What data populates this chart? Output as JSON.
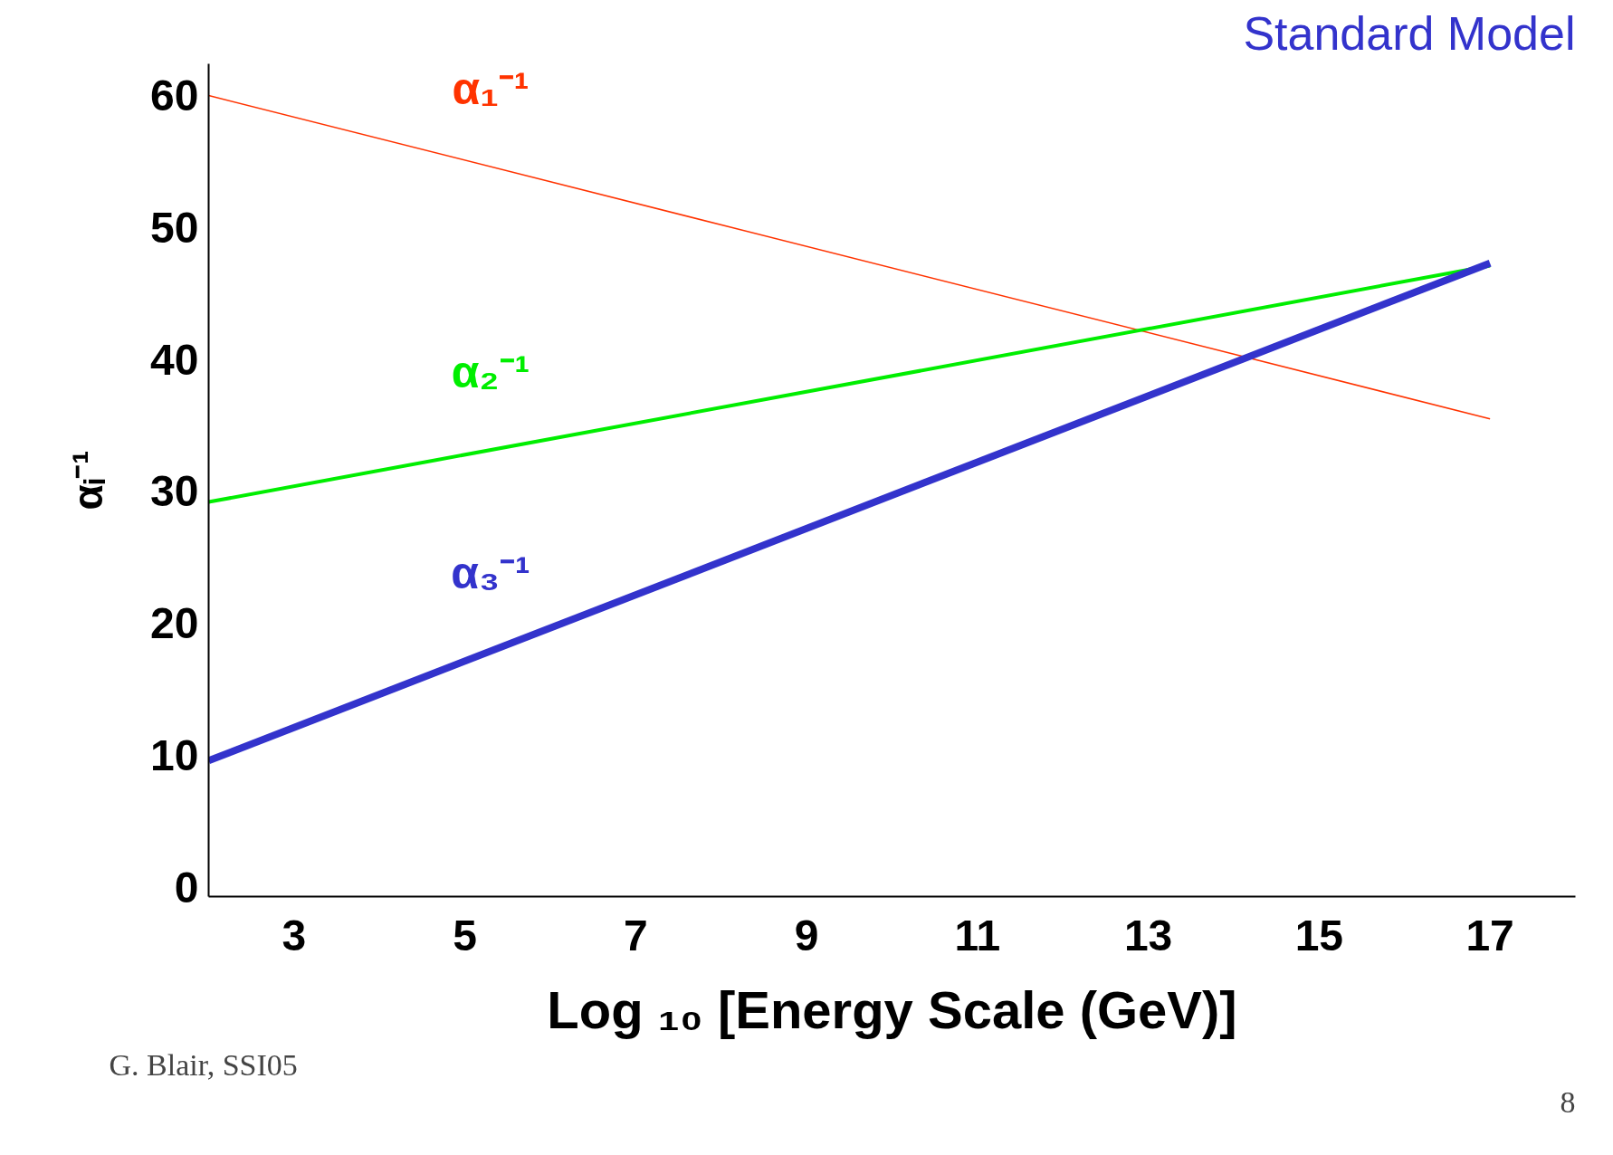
{
  "chart_data": {
    "type": "line",
    "title": "Standard Model",
    "xlabel": "Log ₁₀ [Energy Scale (GeV)]",
    "ylabel": "αᵢ⁻¹",
    "x": [
      2,
      17
    ],
    "xlim": [
      2,
      18
    ],
    "ylim": [
      -0.7,
      62.4
    ],
    "xticks": [
      3,
      5,
      7,
      9,
      11,
      13,
      15,
      17
    ],
    "yticks": [
      0,
      10,
      20,
      30,
      40,
      50,
      60
    ],
    "grid": false,
    "series": [
      {
        "name": "α₁⁻¹",
        "color": "#ff3300",
        "values": [
          60,
          35.5
        ]
      },
      {
        "name": "α₂⁻¹",
        "color": "#00ee00",
        "values": [
          29.2,
          47.1
        ]
      },
      {
        "name": "α₃⁻¹",
        "color": "#3333cc",
        "values": [
          9.6,
          47.3
        ]
      }
    ],
    "annotations": [
      "G. Blair, SSI05",
      "8"
    ]
  }
}
